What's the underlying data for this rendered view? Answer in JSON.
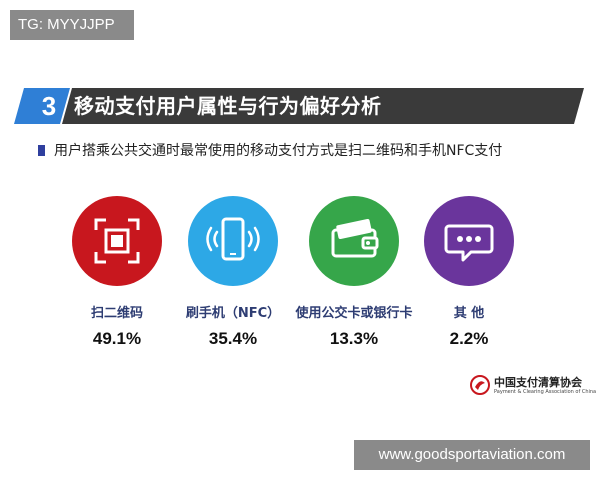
{
  "tag": "TG: MYYJJPP",
  "section": {
    "number": "3",
    "title": "移动支付用户属性与行为偏好分析"
  },
  "subtitle": "用户搭乘公共交通时最常使用的移动支付方式是扫二维码和手机NFC支付",
  "chart_data": {
    "type": "table",
    "categories": [
      "扫二维码",
      "刷手机（NFC）",
      "使用公交卡或银行卡",
      "其 他"
    ],
    "values": [
      49.1,
      35.4,
      13.3,
      2.2
    ],
    "value_labels": [
      "49.1%",
      "35.4%",
      "13.3%",
      "2.2%"
    ],
    "icons": [
      "qr-scan-icon",
      "nfc-phone-icon",
      "wallet-card-icon",
      "chat-bubble-icon"
    ],
    "colors": [
      "#c8171e",
      "#2da8e6",
      "#36a64a",
      "#6a359c"
    ]
  },
  "association": {
    "name_cn": "中国支付清算协会",
    "name_en": "Payment & Clearing Association of China"
  },
  "watermark": "www.goodsportaviation.com",
  "colors": {
    "title_bar": "#3a3a3a",
    "title_accent": "#2f7fd6",
    "label_text": "#2e3d73"
  }
}
